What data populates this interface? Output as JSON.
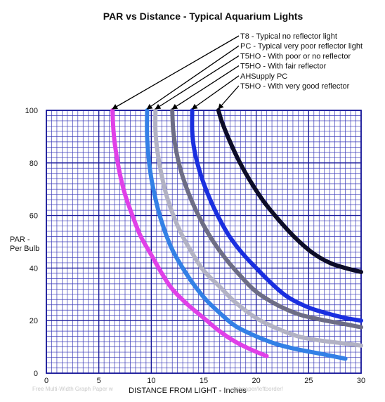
{
  "chart_data": {
    "type": "line",
    "title": "PAR vs Distance - Typical Aquarium Lights",
    "ylabel": "PAR -\nPer Bulb",
    "xlabel": "DISTANCE FROM LIGHT - Inches",
    "xlim": [
      0,
      30
    ],
    "ylim": [
      0,
      100
    ],
    "x_ticks": [
      0,
      5,
      10,
      15,
      20,
      25,
      30
    ],
    "y_ticks": [
      0,
      20,
      40,
      60,
      80,
      100
    ],
    "grid": true,
    "legend_placement": "top-right, with arrows to curve starts",
    "footer_text": "Free Multi-Width Graph Paper w",
    "footer_text_right": "aphpaper/leftborder/",
    "series": [
      {
        "name": "T8 - Typical no reflector light",
        "color": "#e040e8",
        "points": [
          [
            6.3,
            100
          ],
          [
            6.4,
            92
          ],
          [
            6.6,
            85
          ],
          [
            7,
            76
          ],
          [
            7.5,
            68
          ],
          [
            8.2,
            60
          ],
          [
            9,
            52
          ],
          [
            10,
            45
          ],
          [
            11,
            38
          ],
          [
            12,
            32
          ],
          [
            13.5,
            26
          ],
          [
            15,
            21
          ],
          [
            16.5,
            16
          ],
          [
            18,
            12
          ],
          [
            19.5,
            9
          ],
          [
            21,
            6.5
          ]
        ]
      },
      {
        "name": "PC - Typical very poor reflector light",
        "color": "#3380e6",
        "points": [
          [
            9.6,
            100
          ],
          [
            9.6,
            90
          ],
          [
            9.8,
            80
          ],
          [
            10.1,
            72
          ],
          [
            10.6,
            63
          ],
          [
            11.2,
            55
          ],
          [
            12,
            47
          ],
          [
            13,
            40
          ],
          [
            14,
            34
          ],
          [
            15.2,
            28
          ],
          [
            16.5,
            23
          ],
          [
            18,
            18
          ],
          [
            20,
            14
          ],
          [
            22,
            11
          ],
          [
            24,
            9
          ],
          [
            26,
            7.5
          ],
          [
            28.5,
            5.5
          ]
        ]
      },
      {
        "name": "T5HO - With poor or no reflector",
        "color": "#b2b2c4",
        "points": [
          [
            10.4,
            100
          ],
          [
            10.4,
            92
          ],
          [
            10.6,
            84
          ],
          [
            11,
            75
          ],
          [
            11.5,
            67
          ],
          [
            12.2,
            59
          ],
          [
            13,
            52
          ],
          [
            14,
            45
          ],
          [
            15,
            39
          ],
          [
            16.5,
            33
          ],
          [
            18,
            27
          ],
          [
            20,
            21
          ],
          [
            22,
            17
          ],
          [
            24,
            14
          ],
          [
            26,
            12.5
          ],
          [
            28,
            11.5
          ],
          [
            30,
            10.5
          ]
        ]
      },
      {
        "name": "T5HO - With fair reflector",
        "color": "#6d6d85",
        "points": [
          [
            12,
            100
          ],
          [
            12.1,
            92
          ],
          [
            12.4,
            84
          ],
          [
            12.9,
            76
          ],
          [
            13.6,
            68
          ],
          [
            14.5,
            60
          ],
          [
            15.6,
            52
          ],
          [
            17,
            44
          ],
          [
            18.5,
            37
          ],
          [
            20,
            31
          ],
          [
            22,
            26
          ],
          [
            24,
            22.5
          ],
          [
            26,
            20.5
          ],
          [
            28,
            19
          ],
          [
            30,
            17.5
          ]
        ]
      },
      {
        "name": "AHSupply PC",
        "color": "#1a2fe0",
        "points": [
          [
            13.9,
            100
          ],
          [
            13.9,
            92
          ],
          [
            14.1,
            85
          ],
          [
            14.6,
            77
          ],
          [
            15.3,
            69
          ],
          [
            16.2,
            61
          ],
          [
            17.3,
            53
          ],
          [
            18.6,
            46
          ],
          [
            20,
            40
          ],
          [
            21.5,
            34
          ],
          [
            23,
            29
          ],
          [
            25,
            25
          ],
          [
            27,
            22.5
          ],
          [
            28.5,
            21
          ],
          [
            30,
            20
          ]
        ]
      },
      {
        "name": "T5HO - With very good reflector",
        "color": "#0d0d28",
        "points": [
          [
            16.4,
            100
          ],
          [
            16.7,
            96
          ],
          [
            17.3,
            90
          ],
          [
            18.2,
            82
          ],
          [
            19.3,
            74
          ],
          [
            20.6,
            66
          ],
          [
            22,
            59
          ],
          [
            23.6,
            52
          ],
          [
            25.3,
            46
          ],
          [
            27,
            42
          ],
          [
            28.5,
            40
          ],
          [
            30,
            38.5
          ]
        ]
      }
    ]
  }
}
